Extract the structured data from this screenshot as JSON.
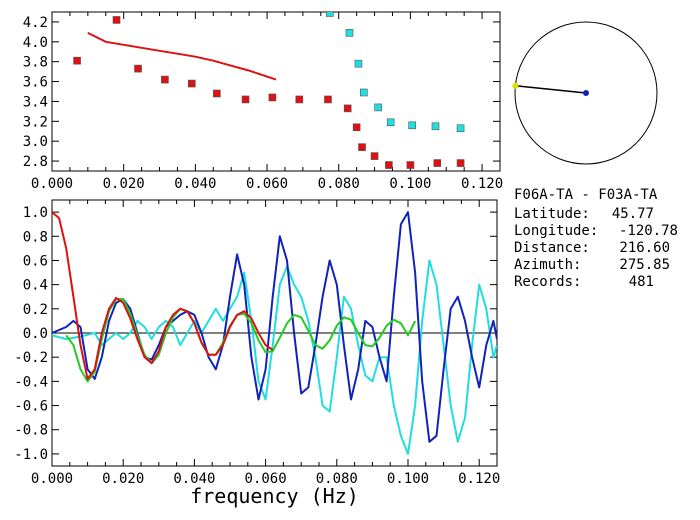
{
  "chart_data": [
    {
      "type": "scatter",
      "xlim": [
        0.0,
        0.125
      ],
      "ylim": [
        2.7,
        4.3
      ],
      "xticks": [
        "0.000",
        "0.020",
        "0.040",
        "0.060",
        "0.080",
        "0.100",
        "0.120"
      ],
      "yticks": [
        "2.8",
        "3.0",
        "3.2",
        "3.4",
        "3.6",
        "3.8",
        "4.0",
        "4.2"
      ],
      "grid": false,
      "colors": {
        "red_points": "#dd1111",
        "cyan_points": "#22dddd",
        "curve": "#dd1111"
      },
      "series": [
        {
          "kind": "curve",
          "x": [
            0.01,
            0.015,
            0.02,
            0.025,
            0.03,
            0.035,
            0.04,
            0.045,
            0.05,
            0.055,
            0.06,
            0.0625
          ],
          "y": [
            4.09,
            4.0,
            3.97,
            3.94,
            3.91,
            3.88,
            3.85,
            3.81,
            3.76,
            3.71,
            3.65,
            3.62
          ]
        },
        {
          "kind": "red-points",
          "x": [
            0.007,
            0.018,
            0.024,
            0.0315,
            0.039,
            0.046,
            0.054,
            0.0615,
            0.069,
            0.077,
            0.0825,
            0.085,
            0.0865,
            0.09,
            0.094,
            0.1,
            0.1075,
            0.114
          ],
          "y": [
            3.81,
            4.22,
            3.73,
            3.62,
            3.58,
            3.48,
            3.42,
            3.44,
            3.42,
            3.42,
            3.33,
            3.14,
            2.94,
            2.85,
            2.76,
            2.76,
            2.78,
            2.78
          ]
        },
        {
          "kind": "cyan-points",
          "x": [
            0.0775,
            0.083,
            0.0855,
            0.087,
            0.091,
            0.0945,
            0.1005,
            0.107,
            0.114
          ],
          "y": [
            4.29,
            4.09,
            3.78,
            3.49,
            3.34,
            3.19,
            3.16,
            3.15,
            3.13
          ]
        }
      ]
    },
    {
      "type": "line",
      "xlim": [
        0.0,
        0.125
      ],
      "ylim": [
        -1.1,
        1.1
      ],
      "xticks": [
        "0.000",
        "0.020",
        "0.040",
        "0.060",
        "0.080",
        "0.100",
        "0.120"
      ],
      "yticks": [
        "1.0",
        "0.8",
        "0.6",
        "0.4",
        "0.2",
        "0.0",
        "-0.2",
        "-0.4",
        "-0.6",
        "-0.8",
        "-1.0"
      ],
      "xlabel": "frequency (Hz)",
      "zero_line": true,
      "colors": {
        "red": "#dd1111",
        "green": "#22cc22",
        "blue": "#1122bb",
        "cyan": "#22dddd"
      },
      "series": [
        {
          "kind": "red",
          "x": [
            0.0,
            0.002,
            0.004,
            0.006,
            0.008,
            0.01,
            0.012,
            0.014,
            0.016,
            0.018,
            0.02,
            0.022,
            0.024,
            0.026,
            0.028,
            0.03,
            0.032,
            0.034,
            0.036,
            0.038,
            0.04,
            0.042,
            0.044,
            0.046,
            0.048,
            0.05,
            0.052,
            0.054,
            0.056,
            0.058,
            0.06,
            0.062
          ],
          "y": [
            1.0,
            0.95,
            0.7,
            0.3,
            -0.1,
            -0.38,
            -0.3,
            0.0,
            0.2,
            0.29,
            0.25,
            0.12,
            -0.05,
            -0.2,
            -0.25,
            -0.15,
            0.05,
            0.15,
            0.2,
            0.18,
            0.08,
            -0.08,
            -0.18,
            -0.18,
            -0.1,
            0.05,
            0.15,
            0.18,
            0.12,
            0.0,
            -0.1,
            -0.14
          ]
        },
        {
          "kind": "green",
          "x": [
            0.004,
            0.006,
            0.008,
            0.01,
            0.012,
            0.014,
            0.016,
            0.018,
            0.02,
            0.022,
            0.024,
            0.026,
            0.028,
            0.03,
            0.032,
            0.034,
            0.036,
            0.038,
            0.04,
            0.042,
            0.044,
            0.046,
            0.048,
            0.05,
            0.052,
            0.054,
            0.056,
            0.058,
            0.06,
            0.062,
            0.064,
            0.066,
            0.068,
            0.07,
            0.072,
            0.074,
            0.076,
            0.078,
            0.08,
            0.082,
            0.084,
            0.086,
            0.088,
            0.09,
            0.092,
            0.094,
            0.096,
            0.098,
            0.1,
            0.102
          ],
          "y": [
            -0.02,
            -0.1,
            -0.3,
            -0.4,
            -0.32,
            -0.05,
            0.18,
            0.28,
            0.28,
            0.16,
            -0.02,
            -0.18,
            -0.25,
            -0.18,
            0.0,
            0.13,
            0.2,
            0.18,
            0.08,
            -0.08,
            -0.18,
            -0.18,
            -0.08,
            0.06,
            0.15,
            0.16,
            0.08,
            -0.06,
            -0.16,
            -0.15,
            -0.04,
            0.08,
            0.15,
            0.13,
            0.02,
            -0.1,
            -0.13,
            -0.06,
            0.06,
            0.13,
            0.11,
            0.0,
            -0.1,
            -0.11,
            -0.04,
            0.06,
            0.11,
            0.08,
            -0.02,
            0.1
          ]
        },
        {
          "kind": "blue",
          "x": [
            0.0,
            0.004,
            0.006,
            0.008,
            0.01,
            0.012,
            0.014,
            0.016,
            0.018,
            0.02,
            0.022,
            0.024,
            0.026,
            0.028,
            0.03,
            0.032,
            0.034,
            0.036,
            0.038,
            0.04,
            0.042,
            0.044,
            0.046,
            0.048,
            0.05,
            0.052,
            0.054,
            0.056,
            0.058,
            0.06,
            0.062,
            0.064,
            0.066,
            0.068,
            0.07,
            0.072,
            0.074,
            0.076,
            0.078,
            0.08,
            0.082,
            0.084,
            0.086,
            0.088,
            0.09,
            0.092,
            0.094,
            0.096,
            0.098,
            0.1,
            0.102,
            0.104,
            0.106,
            0.108,
            0.11,
            0.112,
            0.114,
            0.116,
            0.118,
            0.12,
            0.122,
            0.124,
            0.125
          ],
          "y": [
            0.0,
            0.05,
            0.1,
            0.05,
            -0.3,
            -0.38,
            -0.2,
            0.1,
            0.25,
            0.28,
            0.2,
            0.0,
            -0.2,
            -0.22,
            -0.1,
            0.05,
            0.1,
            0.15,
            0.18,
            0.15,
            0.0,
            -0.2,
            -0.3,
            -0.1,
            0.3,
            0.65,
            0.4,
            -0.2,
            -0.55,
            -0.3,
            0.3,
            0.8,
            0.6,
            0.0,
            -0.5,
            -0.45,
            -0.1,
            0.3,
            0.6,
            0.4,
            -0.1,
            -0.55,
            -0.3,
            0.1,
            0.05,
            -0.2,
            -0.4,
            0.3,
            0.9,
            1.0,
            0.5,
            -0.4,
            -0.9,
            -0.85,
            -0.3,
            0.2,
            0.3,
            0.1,
            -0.2,
            -0.45,
            -0.1,
            0.1,
            -0.05
          ]
        },
        {
          "kind": "cyan",
          "x": [
            0.0,
            0.004,
            0.008,
            0.012,
            0.014,
            0.016,
            0.018,
            0.02,
            0.022,
            0.024,
            0.026,
            0.028,
            0.03,
            0.032,
            0.034,
            0.036,
            0.038,
            0.04,
            0.042,
            0.044,
            0.046,
            0.048,
            0.05,
            0.052,
            0.054,
            0.056,
            0.058,
            0.06,
            0.062,
            0.064,
            0.066,
            0.068,
            0.07,
            0.072,
            0.074,
            0.076,
            0.078,
            0.08,
            0.082,
            0.084,
            0.086,
            0.088,
            0.09,
            0.092,
            0.094,
            0.096,
            0.098,
            0.1,
            0.102,
            0.104,
            0.106,
            0.108,
            0.11,
            0.112,
            0.114,
            0.116,
            0.118,
            0.12,
            0.122,
            0.124,
            0.125
          ],
          "y": [
            -0.02,
            -0.05,
            -0.03,
            0.0,
            -0.1,
            -0.05,
            0.0,
            -0.05,
            0.0,
            0.1,
            0.05,
            -0.05,
            0.05,
            0.1,
            0.05,
            -0.1,
            0.0,
            0.1,
            0.0,
            0.1,
            0.2,
            0.1,
            0.2,
            0.3,
            0.5,
            0.1,
            -0.4,
            -0.55,
            -0.1,
            0.4,
            0.55,
            0.4,
            0.3,
            0.1,
            -0.2,
            -0.6,
            -0.65,
            -0.2,
            0.3,
            0.2,
            -0.1,
            -0.35,
            -0.4,
            -0.2,
            -0.2,
            -0.6,
            -0.85,
            -1.0,
            -0.6,
            0.1,
            0.6,
            0.4,
            -0.1,
            -0.6,
            -0.9,
            -0.7,
            -0.1,
            0.4,
            0.2,
            -0.2,
            -0.1
          ]
        }
      ]
    }
  ],
  "info": {
    "station_pair": "F06A-TA  -  F03A-TA",
    "rows": [
      {
        "label": "Latitude:",
        "value": "45.77"
      },
      {
        "label": "Longitude:",
        "value": "-120.78"
      },
      {
        "label": "Distance:",
        "value": "216.60"
      },
      {
        "label": "Azimuth:",
        "value": "275.85"
      },
      {
        "label": "Records:",
        "value": "481"
      }
    ]
  },
  "azimuth_dial": {
    "azimuth_deg": 275.85,
    "colors": {
      "needle": "#000000",
      "center": "#1122bb",
      "tip": "#dddd00"
    }
  }
}
